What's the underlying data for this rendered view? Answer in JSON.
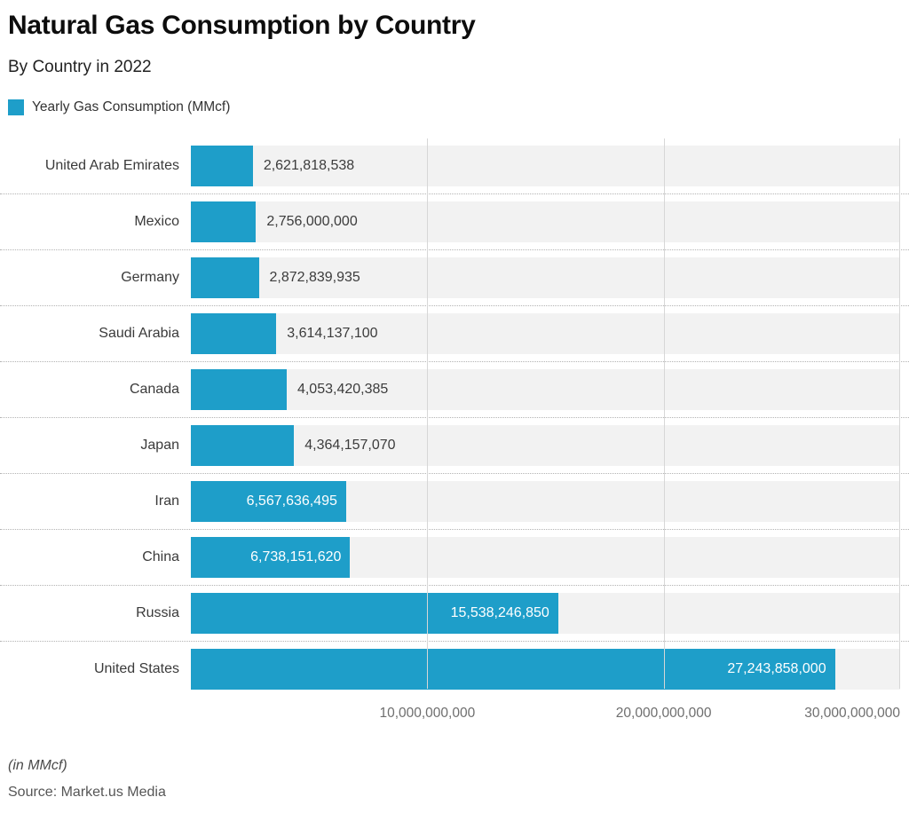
{
  "header": {
    "title": "Natural Gas Consumption by Country",
    "subtitle": "By Country in 2022",
    "legend": {
      "label": "Yearly Gas Consumption (MMcf)",
      "swatch_color": "#1e9ec9"
    }
  },
  "chart_data": {
    "type": "bar",
    "orientation": "horizontal",
    "title": "Natural Gas Consumption by Country",
    "subtitle": "By Country in 2022",
    "series_name": "Yearly Gas Consumption (MMcf)",
    "categories": [
      "United Arab Emirates",
      "Mexico",
      "Germany",
      "Saudi Arabia",
      "Canada",
      "Japan",
      "Iran",
      "China",
      "Russia",
      "United States"
    ],
    "values": [
      2621818538,
      2756000000,
      2872839935,
      3614137100,
      4053420385,
      4364157070,
      6567636495,
      6738151620,
      15538246850,
      27243858000
    ],
    "value_labels": [
      "2,621,818,538",
      "2,756,000,000",
      "2,872,839,935",
      "3,614,137,100",
      "4,053,420,385",
      "4,364,157,070",
      "6,567,636,495",
      "6,738,151,620",
      "15,538,246,850",
      "27,243,858,000"
    ],
    "xlim": [
      0,
      30000000000
    ],
    "x_ticks": [
      {
        "value": 10000000000,
        "label": "10,000,000,000"
      },
      {
        "value": 20000000000,
        "label": "20,000,000,000"
      },
      {
        "value": 30000000000,
        "label": "30,000,000,000"
      }
    ],
    "bar_color": "#1e9ec9",
    "track_color": "#f2f2f2",
    "grid": true,
    "legend_position": "top-left"
  },
  "footer": {
    "unit_note": "(in MMcf)",
    "source": "Source: Market.us Media"
  }
}
